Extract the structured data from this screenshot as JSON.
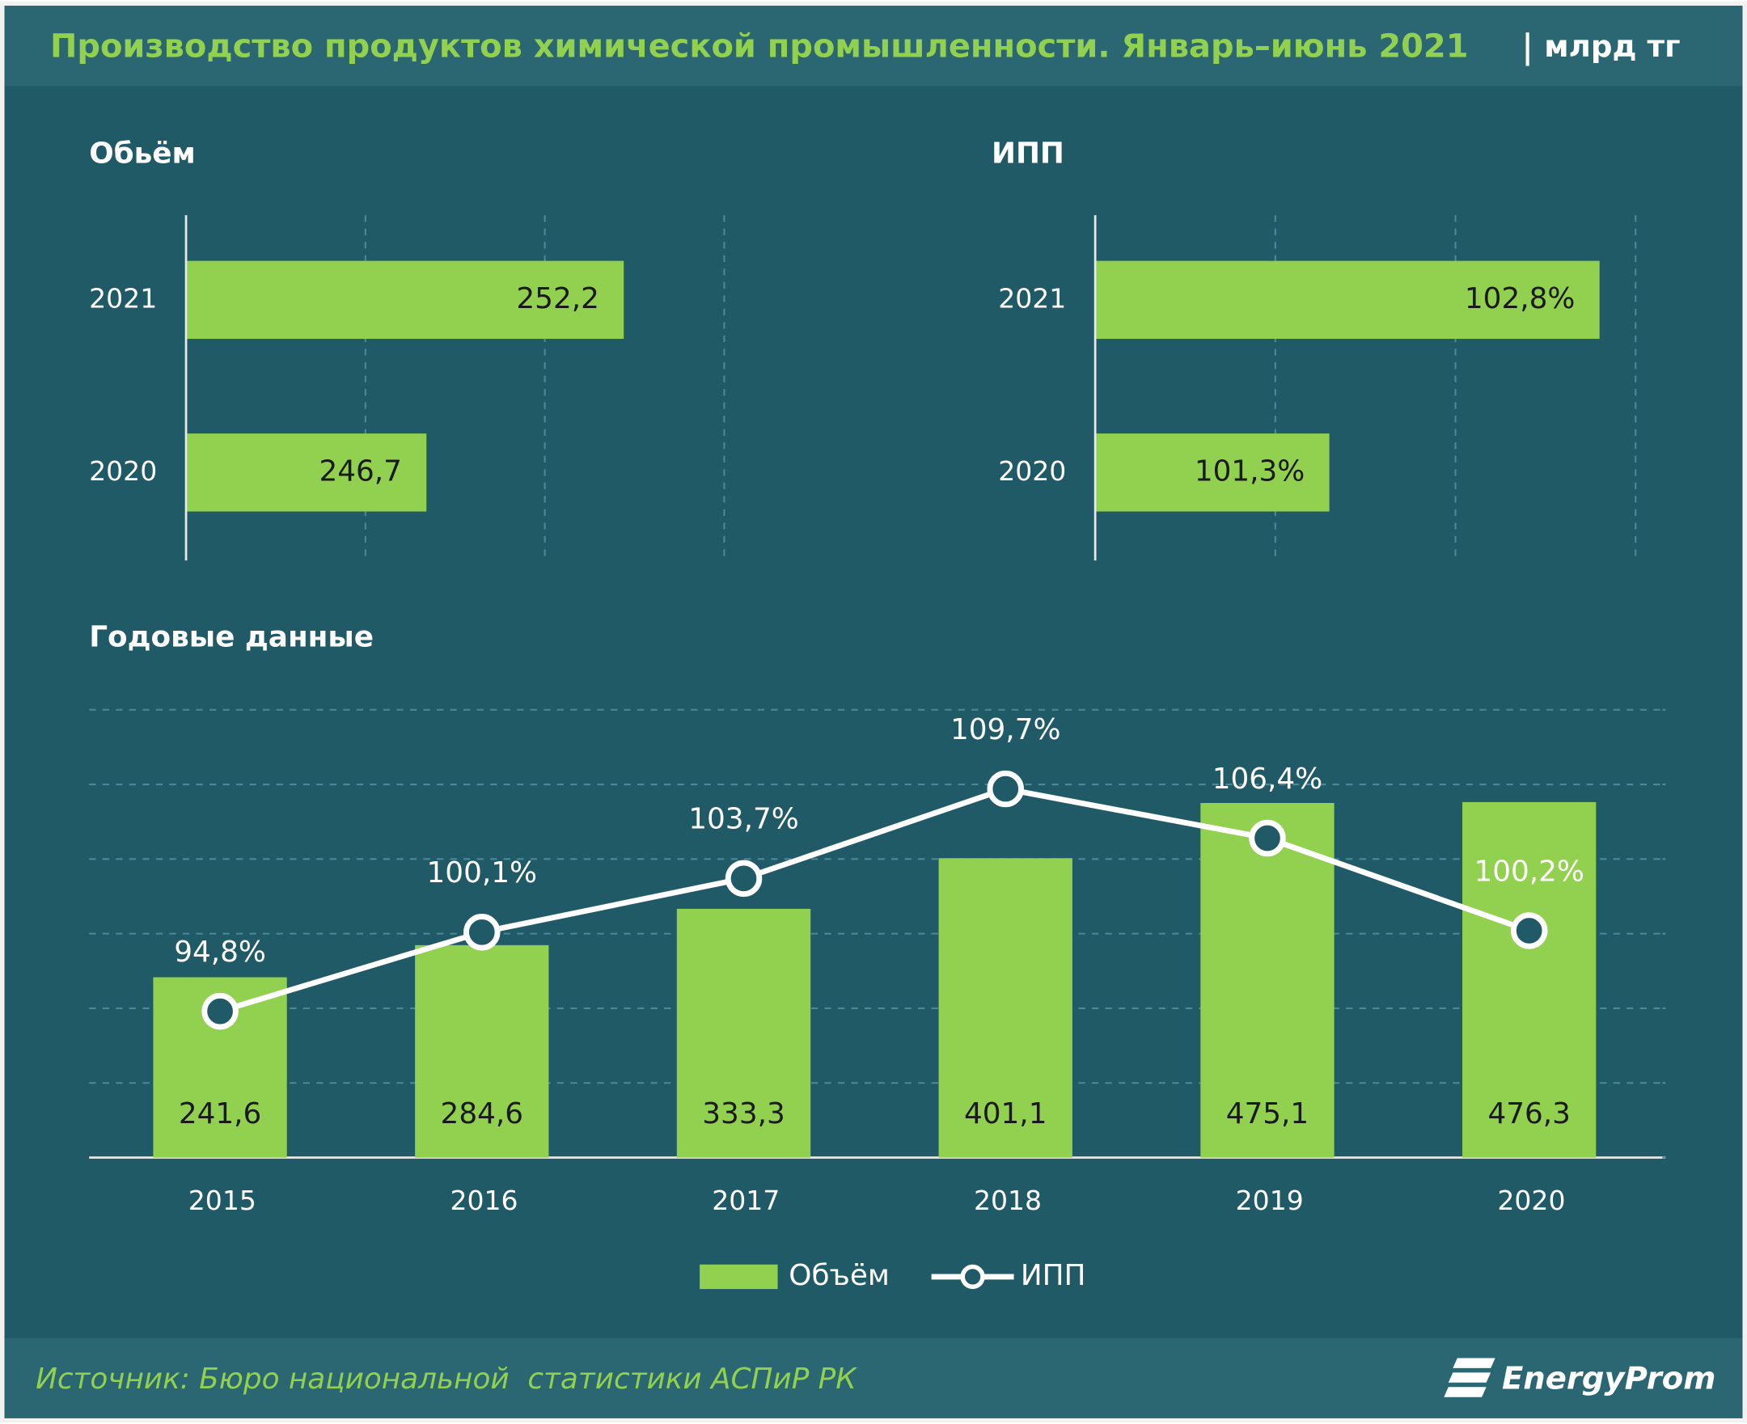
{
  "header": {
    "title": "Производство продуктов химической промышленности. Январь–июнь 2021",
    "unit": "млрд тг"
  },
  "chart_data": [
    {
      "type": "hbar",
      "title": "Обьём",
      "categories": [
        "2021",
        "2020"
      ],
      "values": [
        252.2,
        246.7
      ],
      "value_labels": [
        "252,2",
        "246,7"
      ],
      "color": "#92d050",
      "xlim": [
        240,
        255
      ],
      "xticks": [
        240,
        245,
        250,
        255
      ],
      "grid": true
    },
    {
      "type": "hbar",
      "title": "ИПП",
      "categories": [
        "2021",
        "2020"
      ],
      "values": [
        102.8,
        101.3
      ],
      "value_labels": [
        "102,8%",
        "101,3%"
      ],
      "color": "#92d050",
      "xlim": [
        100,
        103
      ],
      "xticks": [
        100,
        101,
        102,
        103
      ],
      "grid": true
    },
    {
      "type": "combo",
      "title": "Годовые данные",
      "categories": [
        "2015",
        "2016",
        "2017",
        "2018",
        "2019",
        "2020"
      ],
      "series": [
        {
          "name": "Объём",
          "type": "bar",
          "color": "#92d050",
          "values": [
            241.6,
            284.6,
            333.3,
            401.1,
            475.1,
            476.3
          ],
          "value_labels": [
            "241,6",
            "284,6",
            "333,3",
            "401,1",
            "475,1",
            "476,3"
          ]
        },
        {
          "name": "ИПП",
          "type": "line",
          "axis": "y2",
          "color": "#ffffff",
          "values": [
            94.8,
            100.1,
            103.7,
            109.7,
            106.4,
            100.2
          ],
          "value_labels": [
            "94,8%",
            "100,1%",
            "103,7%",
            "109,7%",
            "106,4%",
            "100,2%"
          ]
        }
      ],
      "ylim": [
        0,
        600
      ],
      "yticks": [
        0,
        100,
        200,
        300,
        400,
        500,
        600
      ],
      "y2lim": [
        85,
        115
      ],
      "y2ticks": [
        85,
        90,
        95,
        100,
        105,
        110,
        115
      ],
      "grid": true,
      "legend": "bottom"
    }
  ],
  "footer": {
    "source": "Источник: Бюро национальной  статистики АСПиР РК",
    "logo": "EnergyProm"
  }
}
